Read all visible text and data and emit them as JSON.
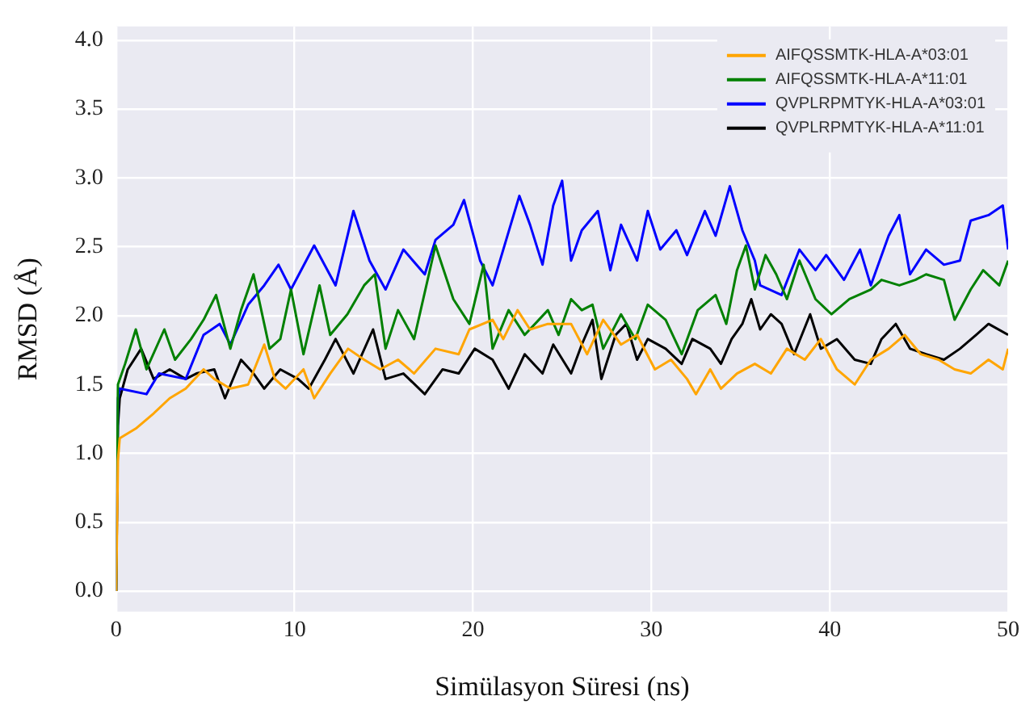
{
  "chart_data": {
    "type": "line",
    "xlabel": "Simülasyon Süresi (ns)",
    "ylabel": "RMSD (Å)",
    "xlim": [
      0,
      50
    ],
    "xticks": [
      0,
      10,
      20,
      30,
      40,
      50
    ],
    "ylim": [
      -0.15,
      4.1
    ],
    "yticks": [
      {
        "value": 0,
        "label": "0.0"
      },
      {
        "value": 0.5,
        "label": "0.5"
      },
      {
        "value": 1,
        "label": "1.0"
      },
      {
        "value": 1.5,
        "label": "1.5"
      },
      {
        "value": 2,
        "label": "2.0"
      },
      {
        "value": 2.5,
        "label": "2.5"
      },
      {
        "value": 3,
        "label": "3.0"
      },
      {
        "value": 3.5,
        "label": "3.5"
      },
      {
        "value": 4,
        "label": "4.0"
      }
    ],
    "grid": true,
    "legend": "top right",
    "line_style": "solid",
    "marker": "none",
    "series": [
      {
        "name": "AIFQSSMTK-HLA-A*03:01",
        "color": "#ffa500",
        "x": [
          0,
          0.1,
          0.2,
          1.1,
          2.1,
          3.0,
          3.9,
          4.9,
          5.5,
          6.4,
          7.4,
          8.3,
          8.9,
          9.5,
          10.5,
          11.1,
          12.0,
          13.0,
          13.9,
          14.8,
          15.8,
          16.7,
          17.9,
          19.2,
          19.8,
          21.1,
          21.7,
          22.5,
          23.2,
          24.2,
          25.5,
          26.4,
          27.3,
          28.3,
          29.2,
          30.2,
          31.1,
          32.0,
          32.5,
          33.3,
          33.9,
          34.8,
          35.8,
          36.7,
          37.6,
          38.6,
          39.5,
          40.4,
          41.4,
          42.3,
          43.3,
          44.2,
          45.1,
          46.1,
          47.0,
          47.9,
          48.9,
          49.7,
          50.0
        ],
        "values": [
          0,
          0.95,
          1.11,
          1.18,
          1.29,
          1.4,
          1.47,
          1.61,
          1.54,
          1.47,
          1.5,
          1.79,
          1.54,
          1.47,
          1.61,
          1.4,
          1.58,
          1.76,
          1.68,
          1.61,
          1.68,
          1.58,
          1.76,
          1.72,
          1.9,
          1.97,
          1.83,
          2.04,
          1.9,
          1.94,
          1.94,
          1.72,
          1.97,
          1.79,
          1.86,
          1.61,
          1.68,
          1.54,
          1.43,
          1.61,
          1.47,
          1.58,
          1.65,
          1.58,
          1.76,
          1.68,
          1.83,
          1.61,
          1.5,
          1.68,
          1.76,
          1.86,
          1.72,
          1.68,
          1.61,
          1.58,
          1.68,
          1.61,
          1.76
        ]
      },
      {
        "name": "AIFQSSMTK-HLA-A*11:01",
        "color": "#008000",
        "x": [
          0,
          0.1,
          0.5,
          1.1,
          1.7,
          2.7,
          3.3,
          4.2,
          4.9,
          5.6,
          6.4,
          7.0,
          7.7,
          8.6,
          9.2,
          9.8,
          10.5,
          11.4,
          12.0,
          12.96,
          13.9,
          14.5,
          15.1,
          15.8,
          16.7,
          17.9,
          18.9,
          19.8,
          20.6,
          21.1,
          22.0,
          22.9,
          24.2,
          24.8,
          25.5,
          26.1,
          26.7,
          27.3,
          28.3,
          29.1,
          29.8,
          30.8,
          31.7,
          32.6,
          33.6,
          34.2,
          34.8,
          35.3,
          35.8,
          36.4,
          37.0,
          37.6,
          38.3,
          39.2,
          40.1,
          41.1,
          42.3,
          42.9,
          43.9,
          44.8,
          45.4,
          46.4,
          47.0,
          47.9,
          48.6,
          49.5,
          50.0
        ],
        "values": [
          0,
          1.5,
          1.65,
          1.9,
          1.61,
          1.9,
          1.68,
          1.83,
          1.97,
          2.15,
          1.76,
          2.04,
          2.3,
          1.76,
          1.83,
          2.19,
          1.72,
          2.22,
          1.86,
          2.01,
          2.22,
          2.3,
          1.76,
          2.04,
          1.83,
          2.51,
          2.12,
          1.94,
          2.37,
          1.76,
          2.04,
          1.86,
          2.04,
          1.86,
          2.12,
          2.04,
          2.08,
          1.76,
          2.01,
          1.83,
          2.08,
          1.97,
          1.72,
          2.04,
          2.15,
          1.94,
          2.33,
          2.51,
          2.19,
          2.44,
          2.3,
          2.12,
          2.4,
          2.12,
          2.01,
          2.12,
          2.19,
          2.26,
          2.22,
          2.26,
          2.3,
          2.26,
          1.97,
          2.19,
          2.33,
          2.22,
          2.4
        ]
      },
      {
        "name": "QVPLRPMTYK-HLA-A*03:01",
        "color": "#0000ff",
        "x": [
          0,
          0.1,
          0.2,
          1.7,
          2.4,
          3.9,
          4.9,
          5.8,
          6.4,
          7.4,
          8.3,
          9.1,
          9.8,
          11.1,
          12.3,
          13.3,
          14.2,
          15.1,
          16.1,
          17.3,
          17.9,
          18.9,
          19.5,
          20.4,
          21.1,
          21.7,
          22.6,
          23.2,
          23.9,
          24.5,
          25.0,
          25.5,
          26.1,
          27.0,
          27.7,
          28.3,
          29.2,
          29.8,
          30.5,
          31.4,
          32.0,
          33.0,
          33.6,
          34.4,
          35.1,
          35.8,
          36.1,
          37.3,
          38.3,
          39.2,
          39.8,
          40.8,
          41.7,
          42.3,
          43.3,
          43.9,
          44.5,
          45.4,
          46.4,
          47.3,
          47.9,
          48.9,
          49.7,
          50.0
        ],
        "values": [
          0,
          1.4,
          1.47,
          1.43,
          1.58,
          1.54,
          1.86,
          1.94,
          1.79,
          2.08,
          2.22,
          2.37,
          2.19,
          2.51,
          2.22,
          2.76,
          2.4,
          2.19,
          2.48,
          2.3,
          2.55,
          2.66,
          2.84,
          2.4,
          2.22,
          2.48,
          2.87,
          2.66,
          2.37,
          2.8,
          2.98,
          2.4,
          2.62,
          2.76,
          2.33,
          2.66,
          2.4,
          2.76,
          2.48,
          2.62,
          2.44,
          2.76,
          2.58,
          2.94,
          2.62,
          2.4,
          2.22,
          2.15,
          2.48,
          2.33,
          2.44,
          2.26,
          2.48,
          2.22,
          2.58,
          2.73,
          2.3,
          2.48,
          2.37,
          2.4,
          2.69,
          2.73,
          2.8,
          2.48
        ]
      },
      {
        "name": "QVPLRPMTYK-HLA-A*11:01",
        "color": "#000000",
        "x": [
          0,
          0.1,
          0.2,
          0.65,
          1.4,
          2.1,
          3.0,
          3.9,
          4.5,
          5.5,
          6.1,
          7.0,
          7.7,
          8.3,
          9.2,
          10.2,
          10.8,
          11.7,
          12.3,
          13.3,
          14.4,
          15.1,
          16.1,
          17.3,
          18.3,
          19.2,
          20.1,
          21.1,
          22.0,
          22.9,
          23.9,
          24.5,
          25.5,
          26.1,
          26.7,
          27.2,
          28.0,
          28.6,
          29.2,
          29.8,
          30.8,
          31.7,
          32.3,
          33.3,
          33.9,
          34.5,
          35.1,
          35.6,
          36.1,
          36.7,
          37.3,
          38.0,
          38.9,
          39.5,
          40.4,
          41.4,
          42.3,
          42.9,
          43.7,
          44.5,
          45.4,
          46.4,
          47.3,
          48.2,
          48.9,
          50.0
        ],
        "values": [
          0,
          1.2,
          1.4,
          1.61,
          1.76,
          1.54,
          1.61,
          1.54,
          1.58,
          1.61,
          1.4,
          1.68,
          1.58,
          1.47,
          1.61,
          1.54,
          1.47,
          1.68,
          1.83,
          1.58,
          1.9,
          1.54,
          1.58,
          1.43,
          1.61,
          1.58,
          1.76,
          1.68,
          1.47,
          1.72,
          1.58,
          1.79,
          1.58,
          1.79,
          1.97,
          1.54,
          1.86,
          1.94,
          1.68,
          1.83,
          1.76,
          1.65,
          1.83,
          1.76,
          1.65,
          1.83,
          1.94,
          2.12,
          1.9,
          2.01,
          1.94,
          1.72,
          2.01,
          1.76,
          1.83,
          1.68,
          1.65,
          1.83,
          1.94,
          1.76,
          1.72,
          1.68,
          1.76,
          1.86,
          1.94,
          1.86
        ]
      }
    ]
  }
}
